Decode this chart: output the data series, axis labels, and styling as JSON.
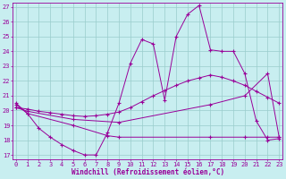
{
  "bg_color": "#c8eef0",
  "line_color": "#990099",
  "grid_color": "#99cccc",
  "ylabel_ticks": [
    17,
    18,
    19,
    20,
    21,
    22,
    23,
    24,
    25,
    26,
    27
  ],
  "xlabel_ticks": [
    0,
    1,
    2,
    3,
    4,
    5,
    6,
    7,
    8,
    9,
    10,
    11,
    12,
    13,
    14,
    15,
    16,
    17,
    18,
    19,
    20,
    21,
    22,
    23
  ],
  "xlim": [
    -0.3,
    23.3
  ],
  "ylim": [
    16.7,
    27.3
  ],
  "xlabel": "Windchill (Refroidissement éolien,°C)",
  "s1_x": [
    0,
    1,
    2,
    3,
    4,
    5,
    6,
    7,
    8,
    9,
    10,
    11,
    12,
    13,
    14,
    15,
    16,
    17,
    18,
    19,
    20,
    21,
    22,
    23
  ],
  "s1_y": [
    20.5,
    19.8,
    18.8,
    18.2,
    17.7,
    17.3,
    17.0,
    17.0,
    18.5,
    20.5,
    23.2,
    24.8,
    24.5,
    20.7,
    25.0,
    26.5,
    27.1,
    24.1,
    24.0,
    24.0,
    22.5,
    19.3,
    18.0,
    18.1
  ],
  "s2_x": [
    0,
    1,
    2,
    3,
    4,
    5,
    6,
    7,
    8,
    9,
    10,
    11,
    12,
    13,
    14,
    15,
    16,
    17,
    18,
    19,
    20,
    21,
    22,
    23
  ],
  "s2_y": [
    20.2,
    20.1,
    19.95,
    19.85,
    19.75,
    19.65,
    19.6,
    19.65,
    19.75,
    19.9,
    20.2,
    20.6,
    21.0,
    21.35,
    21.7,
    22.0,
    22.2,
    22.4,
    22.25,
    22.0,
    21.7,
    21.3,
    20.9,
    20.5
  ],
  "s3_x": [
    0,
    1,
    5,
    9,
    17,
    20,
    22,
    23
  ],
  "s3_y": [
    20.2,
    19.95,
    19.4,
    19.2,
    20.4,
    21.0,
    22.5,
    18.2
  ],
  "s4_x": [
    0,
    1,
    5,
    8,
    9,
    17,
    20,
    22,
    23
  ],
  "s4_y": [
    20.4,
    19.8,
    19.0,
    18.3,
    18.2,
    18.2,
    18.2,
    18.2,
    18.2
  ]
}
